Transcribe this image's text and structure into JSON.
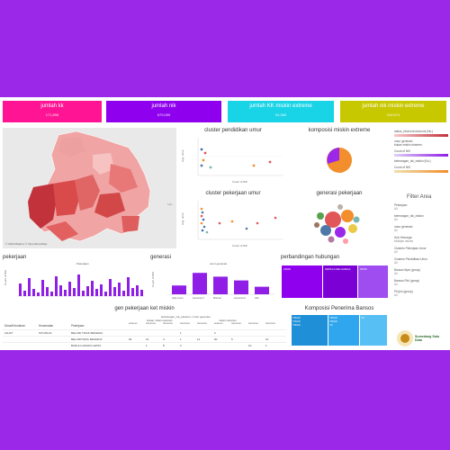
{
  "kpis": [
    {
      "label": "jumlah kk",
      "value": "171,896",
      "color": "#ff1493"
    },
    {
      "label": "jumlah nik",
      "value": "679,059",
      "color": "#8f00ef"
    },
    {
      "label": "jumlah KK miskin extreme",
      "value": "94,365",
      "color": "#19d3e6"
    },
    {
      "label": "jumlah nik miskin extreme",
      "value": "249,974",
      "color": "#c8c800"
    }
  ],
  "map": {
    "credit": "© 2024 Mapbox © OpenStreetMap",
    "side_label": "Lati..."
  },
  "cluster_pendidikan": {
    "title": "cluster pendidikan umur",
    "ylabel": "Avg. umur",
    "xlabel": "Count of NIK"
  },
  "komposisi": {
    "title": "komposisi miskin extreme"
  },
  "cluster_pekerjaan": {
    "title": "cluster pekerjaan umur",
    "ylabel": "Avg. umur",
    "xlabel": "Count of NIK"
  },
  "generasi_pekerjaan": {
    "title": "generasi pekerjaan"
  },
  "legend": {
    "l1": "status_ekonomi,ekonomi (Nu.)",
    "l2": "umur generasi",
    "l3": "bukan miskin ekstrem",
    "l4": "Count of NIK",
    "l5": "keterangan_nik_miskin (Nu.)",
    "l6": "Count of NIK"
  },
  "filter": {
    "title": "Filter Area",
    "items": [
      {
        "label": "Pekerjaan",
        "value": "All"
      },
      {
        "label": "keterangan_nik_miskin",
        "value": "All"
      },
      {
        "label": "umur generasi",
        "value": "All"
      },
      {
        "label": "Hub Keluarga",
        "value": "Multiple values"
      },
      {
        "label": "Clusters Pekerjaan Umur",
        "value": "All"
      },
      {
        "label": "Clusters Pendidikan Umur",
        "value": "All"
      },
      {
        "label": "Bansos Bpnt (group)",
        "value": "All"
      },
      {
        "label": "Bansos Pkh (group)",
        "value": "All"
      },
      {
        "label": "Pbi.jkn (group)",
        "value": "All"
      }
    ]
  },
  "pekerjaan": {
    "title": "pekerjaan",
    "ylabel": "Count of NIK",
    "legend": "Pekerjaan"
  },
  "generasi": {
    "title": "generasi",
    "legend": "umur generasi",
    "ylabel": "Count of NIK",
    "cats": [
      "baby boom",
      "Generasi X",
      "Milenial",
      "Generasi Z",
      "Alfa"
    ],
    "values": [
      0.35,
      0.85,
      0.7,
      0.55,
      0.3
    ]
  },
  "perbandingan": {
    "title": "perbandingan hubungan",
    "c1": "ANAK",
    "c2": "KEPALA KELUARGA",
    "c3": "ISTRI"
  },
  "table": {
    "title": "gen pekerjaan ket miskin",
    "subtitle": "keterangan_nik_ekstrem / umur generasi",
    "grp1": "bukan miskin ekstrem",
    "grp2": "miskin ekstrem",
    "h1": "Desa/Kelurahan",
    "h2": "Kecamatan",
    "h3": "Pekerjaan",
    "cols": [
      "anak-an..",
      "Generasi..",
      "Generasi..",
      "Generasi..",
      "Generasi..",
      "anak-an..",
      "Generasi..",
      "Generasi..",
      "Generasi.."
    ],
    "rows": [
      {
        "desa": "ANJAT",
        "kec": "SITURAJA",
        "pek": "BELUM/ TIDAK BEKERJA",
        "v": [
          "",
          "",
          "",
          "1",
          "",
          "2",
          "",
          "",
          ""
        ]
      },
      {
        "desa": "",
        "kec": "",
        "pek": "BELUM/TIDAK BEKERJA",
        "v": [
          "90",
          "21",
          "4",
          "1",
          "11",
          "90",
          "5",
          "",
          "10"
        ]
      },
      {
        "desa": "",
        "kec": "",
        "pek": "BURUH HARIAN LEPAS",
        "v": [
          "",
          "1",
          "8",
          "2",
          "",
          "",
          "",
          "10",
          "1"
        ]
      }
    ]
  },
  "komposisi_bansos": {
    "title": "Komposisi Penerima Bansos",
    "cells": [
      "TIDAK",
      "TIDAK",
      "TIDAK",
      "TIDAK",
      "TIDAK",
      "YA",
      "YA"
    ]
  },
  "logo": {
    "text": "Sumedang Satu Data"
  }
}
